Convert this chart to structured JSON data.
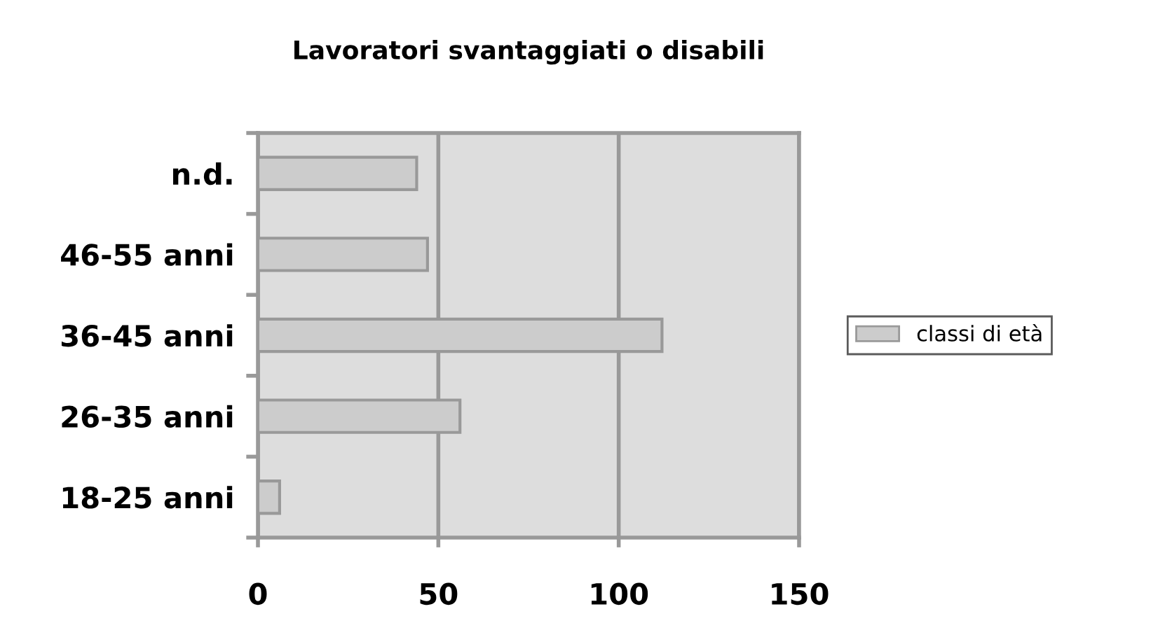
{
  "chart_data": {
    "type": "bar",
    "orientation": "horizontal",
    "title": "Lavoratori svantaggiati o disabili",
    "categories": [
      "n.d.",
      "46-55 anni",
      "36-45 anni",
      "26-35 anni",
      "18-25 anni"
    ],
    "series": [
      {
        "name": "classi di età",
        "color": "#cccccc",
        "values": [
          44,
          47,
          112,
          56,
          6
        ]
      }
    ],
    "xlim": [
      0,
      150
    ],
    "xticks": [
      0,
      50,
      100,
      150
    ],
    "grid": "x",
    "legend": "right"
  }
}
